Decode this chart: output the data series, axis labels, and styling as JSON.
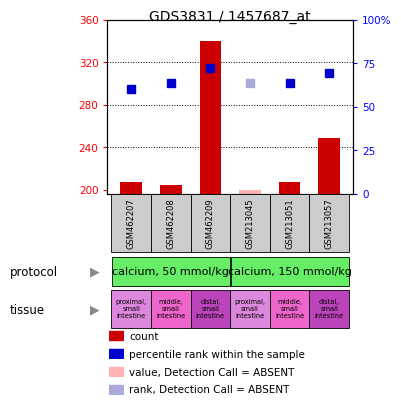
{
  "title": "GDS3831 / 1457687_at",
  "samples": [
    "GSM462207",
    "GSM462208",
    "GSM462209",
    "GSM213045",
    "GSM213051",
    "GSM213057"
  ],
  "bar_values": [
    207,
    204,
    340,
    200,
    207,
    249
  ],
  "bar_absent": [
    false,
    false,
    false,
    true,
    false,
    false
  ],
  "rank_values": [
    295,
    300,
    315,
    300,
    300,
    310
  ],
  "rank_absent": [
    false,
    false,
    false,
    true,
    false,
    false
  ],
  "ylim_left": [
    196,
    360
  ],
  "ylim_right": [
    0,
    100
  ],
  "yticks_left": [
    200,
    240,
    280,
    320,
    360
  ],
  "yticks_right": [
    0,
    25,
    50,
    75,
    100
  ],
  "bar_color_present": "#cc0000",
  "bar_color_absent": "#ffb3b3",
  "rank_color_present": "#0000cc",
  "rank_color_absent": "#aaaadd",
  "protocol_labels": [
    "calcium, 50 mmol/kg",
    "calcium, 150 mmol/kg"
  ],
  "protocol_groups": [
    3,
    3
  ],
  "protocol_color": "#66ee66",
  "tissue_labels": [
    "proximal,\nsmall\nintestine",
    "middle,\nsmall\nintestine",
    "distal,\nsmall\nintestine",
    "proximal,\nsmall\nintestine",
    "middle,\nsmall\nintestine",
    "distal,\nsmall\nintestine"
  ],
  "tissue_colors": [
    "#dd88dd",
    "#ee66cc",
    "#bb44bb",
    "#dd88dd",
    "#ee66cc",
    "#bb44bb"
  ],
  "sample_bg_color": "#cccccc",
  "legend_items": [
    {
      "color": "#cc0000",
      "label": "count"
    },
    {
      "color": "#0000cc",
      "label": "percentile rank within the sample"
    },
    {
      "color": "#ffb3b3",
      "label": "value, Detection Call = ABSENT"
    },
    {
      "color": "#aaaadd",
      "label": "rank, Detection Call = ABSENT"
    }
  ]
}
